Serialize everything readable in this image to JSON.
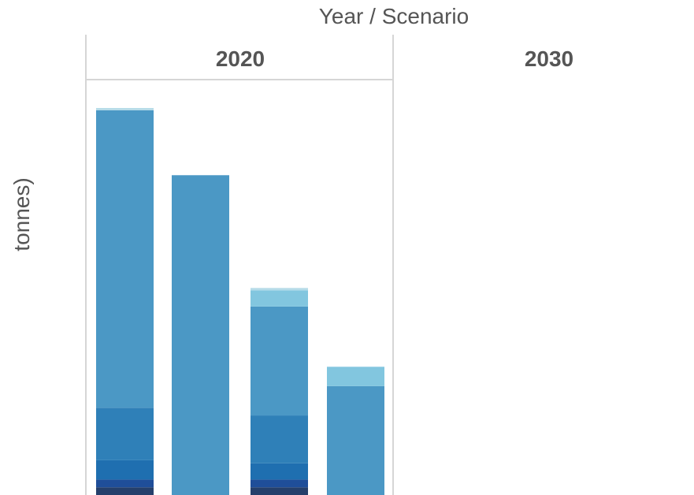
{
  "chart_data": {
    "type": "bar",
    "stacked": true,
    "title": "Year  /  Scenario",
    "ylabel": "tonnes)",
    "facets": [
      "2020",
      "2030"
    ],
    "colors": [
      "#253f6b",
      "#1f4e99",
      "#1f6fb0",
      "#2f80b8",
      "#4b98c5",
      "#82c6df",
      "#b6dbe8"
    ],
    "ylim": [
      0,
      500
    ],
    "bars": [
      {
        "facet": "2020",
        "segments": [
          10,
          10,
          25,
          68,
          385,
          0,
          3
        ]
      },
      {
        "facet": "2020",
        "segments": [
          0,
          0,
          0,
          0,
          414,
          0,
          0
        ]
      },
      {
        "facet": "2020",
        "segments": [
          10,
          10,
          21,
          62,
          141,
          21,
          3
        ]
      },
      {
        "facet": "2020",
        "segments": [
          0,
          0,
          0,
          0,
          141,
          25,
          0
        ]
      }
    ]
  }
}
